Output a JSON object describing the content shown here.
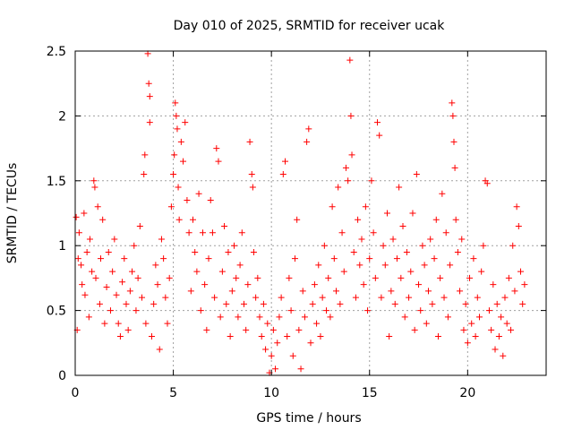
{
  "chart_data": {
    "type": "scatter",
    "title": "Day 010 of 2025, SRMTID for receiver ucak",
    "xlabel": "GPS time / hours",
    "ylabel": "SRMTID / TECUs",
    "xlim": [
      0,
      24
    ],
    "ylim": [
      0,
      2.5
    ],
    "xticks": [
      0,
      5,
      10,
      15,
      20
    ],
    "xtick_labels": [
      "0",
      "5",
      "10",
      "15",
      "20"
    ],
    "yticks": [
      0,
      0.5,
      1,
      1.5,
      2,
      2.5
    ],
    "ytick_labels": [
      "0",
      "0.5",
      "1",
      "1.5",
      "2",
      "2.5"
    ],
    "grid": true,
    "marker": "+",
    "color": "#ff0000",
    "series": [
      {
        "name": "SRMTID",
        "points": [
          [
            0.05,
            1.22
          ],
          [
            0.1,
            0.35
          ],
          [
            0.15,
            0.9
          ],
          [
            0.2,
            1.1
          ],
          [
            0.3,
            0.85
          ],
          [
            0.35,
            0.7
          ],
          [
            0.45,
            1.25
          ],
          [
            0.5,
            0.62
          ],
          [
            0.6,
            0.95
          ],
          [
            0.7,
            0.45
          ],
          [
            0.75,
            1.05
          ],
          [
            0.85,
            0.8
          ],
          [
            0.95,
            1.5
          ],
          [
            1.0,
            1.45
          ],
          [
            1.05,
            0.75
          ],
          [
            1.15,
            1.3
          ],
          [
            1.25,
            0.55
          ],
          [
            1.3,
            0.9
          ],
          [
            1.4,
            1.2
          ],
          [
            1.5,
            0.4
          ],
          [
            1.6,
            0.68
          ],
          [
            1.7,
            0.95
          ],
          [
            1.8,
            0.5
          ],
          [
            1.9,
            0.8
          ],
          [
            2.0,
            1.05
          ],
          [
            2.1,
            0.62
          ],
          [
            2.2,
            0.4
          ],
          [
            2.3,
            0.3
          ],
          [
            2.4,
            0.72
          ],
          [
            2.5,
            0.9
          ],
          [
            2.6,
            0.55
          ],
          [
            2.7,
            0.35
          ],
          [
            2.8,
            0.65
          ],
          [
            2.9,
            0.8
          ],
          [
            3.0,
            1.0
          ],
          [
            3.1,
            0.5
          ],
          [
            3.2,
            0.75
          ],
          [
            3.3,
            1.15
          ],
          [
            3.4,
            0.6
          ],
          [
            3.5,
            1.55
          ],
          [
            3.55,
            1.7
          ],
          [
            3.6,
            0.4
          ],
          [
            3.7,
            2.48
          ],
          [
            3.75,
            2.25
          ],
          [
            3.8,
            2.15
          ],
          [
            3.8,
            1.95
          ],
          [
            3.9,
            0.3
          ],
          [
            4.0,
            0.55
          ],
          [
            4.1,
            0.85
          ],
          [
            4.2,
            0.7
          ],
          [
            4.3,
            0.2
          ],
          [
            4.4,
            1.05
          ],
          [
            4.5,
            0.9
          ],
          [
            4.6,
            0.6
          ],
          [
            4.7,
            0.4
          ],
          [
            4.8,
            0.75
          ],
          [
            4.9,
            1.3
          ],
          [
            5.0,
            1.55
          ],
          [
            5.05,
            1.7
          ],
          [
            5.1,
            2.1
          ],
          [
            5.15,
            2.0
          ],
          [
            5.2,
            1.9
          ],
          [
            5.25,
            1.45
          ],
          [
            5.3,
            1.2
          ],
          [
            5.4,
            1.8
          ],
          [
            5.5,
            1.65
          ],
          [
            5.6,
            1.95
          ],
          [
            5.7,
            1.35
          ],
          [
            5.8,
            1.1
          ],
          [
            5.9,
            0.65
          ],
          [
            6.0,
            1.2
          ],
          [
            6.1,
            0.95
          ],
          [
            6.2,
            0.8
          ],
          [
            6.3,
            1.4
          ],
          [
            6.4,
            0.5
          ],
          [
            6.5,
            1.1
          ],
          [
            6.6,
            0.7
          ],
          [
            6.7,
            0.35
          ],
          [
            6.8,
            0.9
          ],
          [
            6.9,
            1.35
          ],
          [
            7.0,
            1.1
          ],
          [
            7.1,
            0.6
          ],
          [
            7.2,
            1.75
          ],
          [
            7.3,
            1.65
          ],
          [
            7.4,
            0.45
          ],
          [
            7.5,
            0.8
          ],
          [
            7.6,
            1.15
          ],
          [
            7.7,
            0.55
          ],
          [
            7.8,
            0.95
          ],
          [
            7.9,
            0.3
          ],
          [
            8.0,
            0.65
          ],
          [
            8.1,
            1.0
          ],
          [
            8.2,
            0.75
          ],
          [
            8.3,
            0.45
          ],
          [
            8.4,
            0.85
          ],
          [
            8.5,
            1.1
          ],
          [
            8.6,
            0.55
          ],
          [
            8.7,
            0.35
          ],
          [
            8.8,
            0.7
          ],
          [
            8.9,
            1.8
          ],
          [
            9.0,
            1.55
          ],
          [
            9.05,
            1.45
          ],
          [
            9.1,
            0.95
          ],
          [
            9.2,
            0.6
          ],
          [
            9.3,
            0.75
          ],
          [
            9.4,
            0.45
          ],
          [
            9.5,
            0.3
          ],
          [
            9.6,
            0.55
          ],
          [
            9.7,
            0.2
          ],
          [
            9.8,
            0.4
          ],
          [
            9.9,
            0.02
          ],
          [
            10.0,
            0.15
          ],
          [
            10.1,
            0.35
          ],
          [
            10.2,
            0.05
          ],
          [
            10.3,
            0.25
          ],
          [
            10.4,
            0.45
          ],
          [
            10.5,
            0.6
          ],
          [
            10.6,
            1.55
          ],
          [
            10.7,
            1.65
          ],
          [
            10.8,
            0.3
          ],
          [
            10.9,
            0.75
          ],
          [
            11.0,
            0.5
          ],
          [
            11.1,
            0.15
          ],
          [
            11.2,
            0.9
          ],
          [
            11.3,
            1.2
          ],
          [
            11.4,
            0.35
          ],
          [
            11.5,
            0.05
          ],
          [
            11.6,
            0.65
          ],
          [
            11.7,
            0.45
          ],
          [
            11.8,
            1.8
          ],
          [
            11.9,
            1.9
          ],
          [
            12.0,
            0.25
          ],
          [
            12.1,
            0.55
          ],
          [
            12.2,
            0.7
          ],
          [
            12.3,
            0.4
          ],
          [
            12.4,
            0.85
          ],
          [
            12.5,
            0.3
          ],
          [
            12.6,
            0.6
          ],
          [
            12.7,
            1.0
          ],
          [
            12.8,
            0.5
          ],
          [
            12.9,
            0.75
          ],
          [
            13.0,
            0.45
          ],
          [
            13.1,
            1.3
          ],
          [
            13.2,
            0.9
          ],
          [
            13.3,
            0.65
          ],
          [
            13.4,
            1.45
          ],
          [
            13.5,
            0.55
          ],
          [
            13.6,
            1.1
          ],
          [
            13.7,
            0.8
          ],
          [
            13.8,
            1.6
          ],
          [
            13.9,
            1.5
          ],
          [
            14.0,
            2.43
          ],
          [
            14.05,
            2.0
          ],
          [
            14.1,
            1.7
          ],
          [
            14.2,
            0.95
          ],
          [
            14.3,
            0.6
          ],
          [
            14.4,
            1.2
          ],
          [
            14.5,
            0.85
          ],
          [
            14.6,
            1.05
          ],
          [
            14.7,
            0.7
          ],
          [
            14.8,
            1.3
          ],
          [
            14.9,
            0.5
          ],
          [
            15.0,
            0.9
          ],
          [
            15.1,
            1.5
          ],
          [
            15.2,
            1.1
          ],
          [
            15.3,
            0.75
          ],
          [
            15.4,
            1.95
          ],
          [
            15.5,
            1.85
          ],
          [
            15.6,
            0.6
          ],
          [
            15.7,
            1.0
          ],
          [
            15.8,
            0.85
          ],
          [
            15.9,
            1.25
          ],
          [
            16.0,
            0.3
          ],
          [
            16.1,
            0.65
          ],
          [
            16.2,
            1.05
          ],
          [
            16.3,
            0.55
          ],
          [
            16.4,
            0.9
          ],
          [
            16.5,
            1.45
          ],
          [
            16.6,
            0.75
          ],
          [
            16.7,
            1.15
          ],
          [
            16.8,
            0.45
          ],
          [
            16.9,
            0.95
          ],
          [
            17.0,
            0.6
          ],
          [
            17.1,
            0.8
          ],
          [
            17.2,
            1.25
          ],
          [
            17.3,
            0.35
          ],
          [
            17.4,
            1.55
          ],
          [
            17.5,
            0.7
          ],
          [
            17.6,
            0.5
          ],
          [
            17.7,
            1.0
          ],
          [
            17.8,
            0.85
          ],
          [
            17.9,
            0.4
          ],
          [
            18.0,
            0.65
          ],
          [
            18.1,
            1.05
          ],
          [
            18.2,
            0.55
          ],
          [
            18.3,
            0.9
          ],
          [
            18.4,
            1.2
          ],
          [
            18.5,
            0.3
          ],
          [
            18.6,
            0.75
          ],
          [
            18.7,
            1.4
          ],
          [
            18.8,
            0.6
          ],
          [
            18.9,
            1.1
          ],
          [
            19.0,
            0.45
          ],
          [
            19.1,
            0.85
          ],
          [
            19.2,
            2.1
          ],
          [
            19.25,
            2.0
          ],
          [
            19.3,
            1.8
          ],
          [
            19.35,
            1.6
          ],
          [
            19.4,
            1.2
          ],
          [
            19.5,
            0.95
          ],
          [
            19.6,
            0.65
          ],
          [
            19.7,
            1.05
          ],
          [
            19.8,
            0.35
          ],
          [
            19.9,
            0.55
          ],
          [
            20.0,
            0.25
          ],
          [
            20.1,
            0.75
          ],
          [
            20.2,
            0.4
          ],
          [
            20.3,
            0.9
          ],
          [
            20.4,
            0.3
          ],
          [
            20.5,
            0.6
          ],
          [
            20.6,
            0.45
          ],
          [
            20.7,
            0.8
          ],
          [
            20.8,
            1.0
          ],
          [
            20.9,
            1.5
          ],
          [
            21.0,
            1.48
          ],
          [
            21.1,
            0.5
          ],
          [
            21.2,
            0.35
          ],
          [
            21.3,
            0.7
          ],
          [
            21.4,
            0.2
          ],
          [
            21.5,
            0.55
          ],
          [
            21.6,
            0.3
          ],
          [
            21.7,
            0.45
          ],
          [
            21.8,
            0.15
          ],
          [
            21.9,
            0.6
          ],
          [
            22.0,
            0.4
          ],
          [
            22.1,
            0.75
          ],
          [
            22.2,
            0.35
          ],
          [
            22.3,
            1.0
          ],
          [
            22.4,
            0.65
          ],
          [
            22.5,
            1.3
          ],
          [
            22.6,
            1.15
          ],
          [
            22.7,
            0.8
          ],
          [
            22.8,
            0.55
          ],
          [
            22.9,
            0.7
          ]
        ]
      }
    ]
  }
}
